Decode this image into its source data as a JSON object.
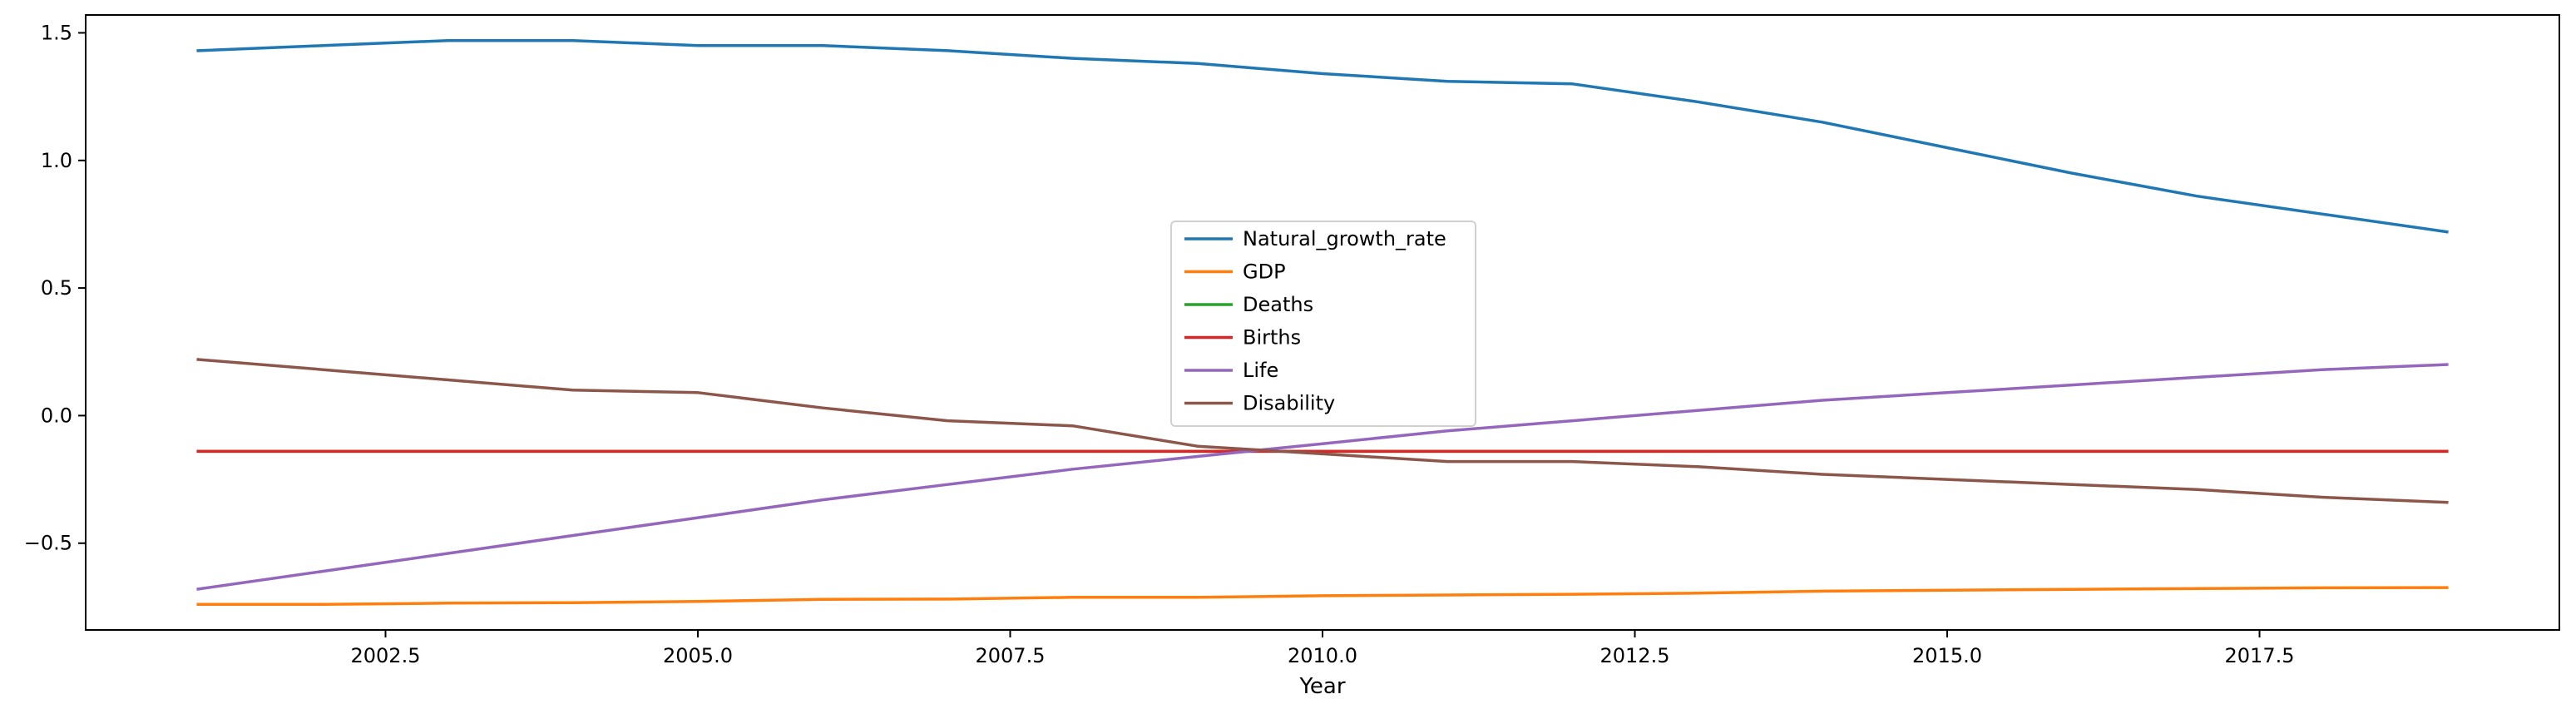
{
  "chart_data": {
    "type": "line",
    "title": "",
    "xlabel": "Year",
    "ylabel": "",
    "xlim": [
      2000.1,
      2019.9
    ],
    "ylim": [
      -0.84,
      1.57
    ],
    "grid": false,
    "legend_position": "center",
    "x_ticks": [
      2002.5,
      2005.0,
      2007.5,
      2010.0,
      2012.5,
      2015.0,
      2017.5
    ],
    "x_tick_labels": [
      "2002.5",
      "2005.0",
      "2007.5",
      "2010.0",
      "2012.5",
      "2015.0",
      "2017.5"
    ],
    "y_ticks": [
      -0.5,
      0.0,
      0.5,
      1.0,
      1.5
    ],
    "y_tick_labels": [
      "−0.5",
      "0.0",
      "0.5",
      "1.0",
      "1.5"
    ],
    "x": [
      2001,
      2002,
      2003,
      2004,
      2005,
      2006,
      2007,
      2008,
      2009,
      2010,
      2011,
      2012,
      2013,
      2014,
      2015,
      2016,
      2017,
      2018,
      2019
    ],
    "series": [
      {
        "name": "Natural_growth_rate",
        "color": "#1f77b4",
        "values": [
          1.43,
          1.45,
          1.47,
          1.47,
          1.45,
          1.45,
          1.43,
          1.4,
          1.38,
          1.34,
          1.31,
          1.3,
          1.23,
          1.15,
          1.05,
          0.95,
          0.86,
          0.79,
          0.72
        ]
      },
      {
        "name": "GDP",
        "color": "#ff7f0e",
        "values": [
          -0.74,
          -0.74,
          -0.735,
          -0.733,
          -0.728,
          -0.72,
          -0.719,
          -0.712,
          -0.712,
          -0.706,
          -0.703,
          -0.7,
          -0.696,
          -0.688,
          -0.684,
          -0.681,
          -0.678,
          -0.675,
          -0.674
        ]
      },
      {
        "name": "Deaths",
        "color": "#2ca02c",
        "values": [
          -0.14,
          -0.14,
          -0.14,
          -0.14,
          -0.14,
          -0.14,
          -0.14,
          -0.14,
          -0.14,
          -0.14,
          -0.14,
          -0.14,
          -0.14,
          -0.14,
          -0.14,
          -0.14,
          -0.14,
          -0.14,
          -0.14
        ]
      },
      {
        "name": "Births",
        "color": "#d62728",
        "values": [
          -0.14,
          -0.14,
          -0.14,
          -0.14,
          -0.14,
          -0.14,
          -0.14,
          -0.14,
          -0.14,
          -0.14,
          -0.14,
          -0.14,
          -0.14,
          -0.14,
          -0.14,
          -0.14,
          -0.14,
          -0.14,
          -0.14
        ]
      },
      {
        "name": "Life",
        "color": "#9467bd",
        "values": [
          -0.68,
          -0.61,
          -0.54,
          -0.47,
          -0.4,
          -0.33,
          -0.27,
          -0.21,
          -0.16,
          -0.11,
          -0.06,
          -0.02,
          0.02,
          0.06,
          0.09,
          0.12,
          0.15,
          0.18,
          0.2
        ]
      },
      {
        "name": "Disability",
        "color": "#8c564b",
        "values": [
          0.22,
          0.18,
          0.14,
          0.1,
          0.09,
          0.03,
          -0.02,
          -0.04,
          -0.12,
          -0.15,
          -0.18,
          -0.18,
          -0.2,
          -0.23,
          -0.25,
          -0.27,
          -0.29,
          -0.32,
          -0.34
        ]
      }
    ]
  }
}
